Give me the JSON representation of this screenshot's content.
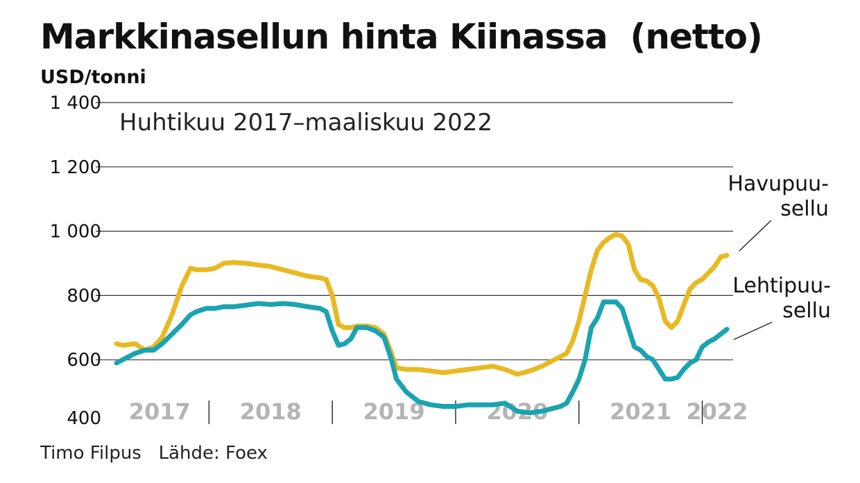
{
  "header": {
    "title": "Markkinasellun hinta Kiinassa  (netto)",
    "unit": "USD/tonni"
  },
  "footer": {
    "credit": "Timo Filpus   Lähde: Foex"
  },
  "colors": {
    "havupuu": "#e8b923",
    "lehtipuu": "#1aa3b0",
    "grid": "#333333",
    "year_label": "#b4b4b4"
  },
  "chart_data": {
    "type": "line",
    "title": "Markkinasellun hinta Kiinassa  (netto)",
    "subtitle": "Huhtikuu 2017–maaliskuu 2022",
    "ylabel": "USD/tonni",
    "ylim": [
      400,
      1400
    ],
    "yticks": [
      400,
      600,
      800,
      1000,
      1200,
      1400
    ],
    "ytick_labels": [
      "400",
      "600",
      "800",
      "1 000",
      "1 200",
      "1 400"
    ],
    "xlim": [
      2017.25,
      2022.25
    ],
    "year_labels": [
      {
        "label": "2017",
        "x": 2017.6
      },
      {
        "label": "2018",
        "x": 2018.5
      },
      {
        "label": "2019",
        "x": 2019.5
      },
      {
        "label": "2020",
        "x": 2020.5
      },
      {
        "label": "2021",
        "x": 2021.5
      },
      {
        "label": "2022",
        "x": 2022.12
      }
    ],
    "year_separators": [
      2018.0,
      2019.0,
      2020.0,
      2021.0,
      2022.0
    ],
    "series": [
      {
        "name": "Havupuu-\nsellu",
        "color": "#e8b923",
        "x": [
          2017.25,
          2017.3,
          2017.4,
          2017.48,
          2017.55,
          2017.62,
          2017.7,
          2017.78,
          2017.85,
          2017.9,
          2017.98,
          2018.05,
          2018.12,
          2018.2,
          2018.3,
          2018.4,
          2018.5,
          2018.6,
          2018.7,
          2018.8,
          2018.9,
          2018.95,
          2019.0,
          2019.05,
          2019.1,
          2019.15,
          2019.2,
          2019.28,
          2019.35,
          2019.42,
          2019.48,
          2019.52,
          2019.6,
          2019.7,
          2019.8,
          2019.9,
          2020.0,
          2020.1,
          2020.2,
          2020.3,
          2020.4,
          2020.5,
          2020.6,
          2020.7,
          2020.75,
          2020.8,
          2020.85,
          2020.9,
          2020.95,
          2021.0,
          2021.05,
          2021.1,
          2021.15,
          2021.2,
          2021.25,
          2021.3,
          2021.35,
          2021.4,
          2021.45,
          2021.5,
          2021.55,
          2021.6,
          2021.65,
          2021.7,
          2021.75,
          2021.8,
          2021.85,
          2021.9,
          2021.95,
          2022.0,
          2022.05,
          2022.1,
          2022.15,
          2022.2
        ],
        "values": [
          650,
          645,
          650,
          630,
          640,
          670,
          740,
          830,
          885,
          880,
          880,
          885,
          900,
          903,
          900,
          895,
          890,
          880,
          870,
          860,
          855,
          850,
          800,
          710,
          700,
          700,
          705,
          705,
          700,
          680,
          620,
          575,
          570,
          570,
          565,
          560,
          565,
          570,
          575,
          580,
          570,
          555,
          565,
          580,
          590,
          600,
          610,
          620,
          660,
          720,
          800,
          880,
          940,
          965,
          980,
          990,
          985,
          960,
          880,
          850,
          845,
          830,
          790,
          720,
          700,
          720,
          770,
          820,
          840,
          850,
          870,
          890,
          920,
          925
        ]
      },
      {
        "name": "Lehtipuu-\nsellu",
        "color": "#1aa3b0",
        "x": [
          2017.25,
          2017.3,
          2017.4,
          2017.48,
          2017.55,
          2017.62,
          2017.7,
          2017.78,
          2017.85,
          2017.9,
          2017.98,
          2018.05,
          2018.12,
          2018.2,
          2018.3,
          2018.4,
          2018.5,
          2018.6,
          2018.7,
          2018.8,
          2018.9,
          2018.95,
          2019.0,
          2019.05,
          2019.1,
          2019.15,
          2019.2,
          2019.28,
          2019.35,
          2019.42,
          2019.48,
          2019.52,
          2019.6,
          2019.7,
          2019.8,
          2019.9,
          2020.0,
          2020.1,
          2020.2,
          2020.3,
          2020.4,
          2020.5,
          2020.6,
          2020.7,
          2020.75,
          2020.8,
          2020.85,
          2020.9,
          2020.95,
          2021.0,
          2021.05,
          2021.1,
          2021.15,
          2021.2,
          2021.25,
          2021.3,
          2021.35,
          2021.4,
          2021.45,
          2021.5,
          2021.55,
          2021.6,
          2021.65,
          2021.7,
          2021.75,
          2021.8,
          2021.85,
          2021.9,
          2021.95,
          2022.0,
          2022.05,
          2022.1,
          2022.15,
          2022.2
        ],
        "values": [
          590,
          600,
          620,
          630,
          630,
          650,
          680,
          710,
          740,
          750,
          760,
          760,
          765,
          765,
          770,
          775,
          772,
          775,
          772,
          765,
          760,
          750,
          690,
          645,
          650,
          665,
          700,
          700,
          690,
          670,
          600,
          540,
          500,
          470,
          460,
          455,
          455,
          460,
          460,
          460,
          465,
          440,
          435,
          440,
          445,
          450,
          455,
          465,
          500,
          540,
          600,
          700,
          730,
          780,
          780,
          780,
          760,
          700,
          640,
          630,
          610,
          600,
          570,
          540,
          540,
          545,
          570,
          590,
          600,
          640,
          655,
          665,
          680,
          695
        ]
      }
    ]
  }
}
